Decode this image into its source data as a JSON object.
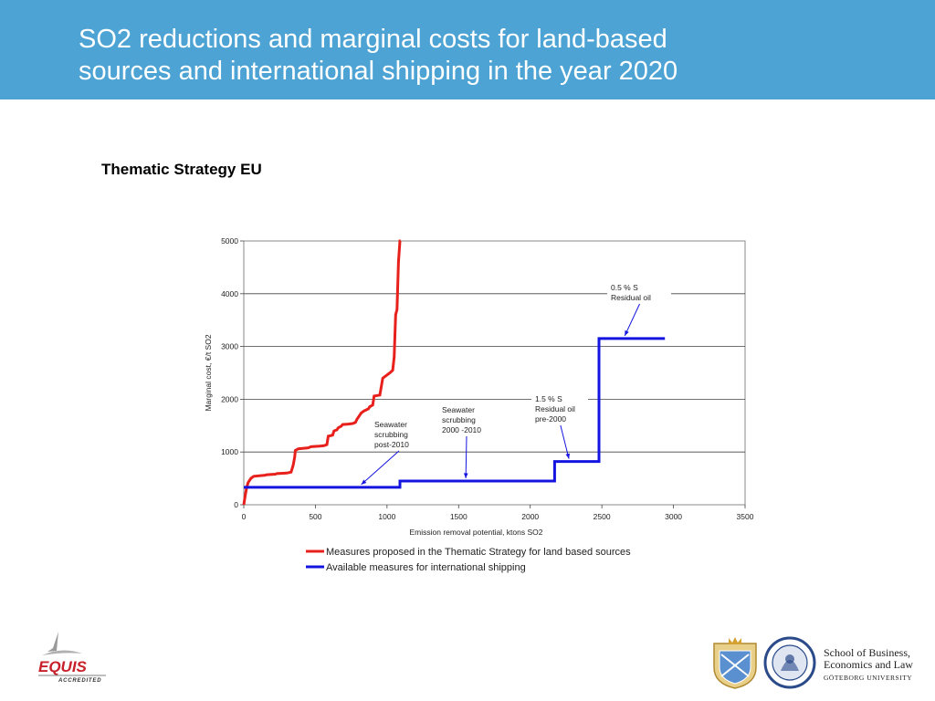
{
  "header": {
    "title_line1": "SO2 reductions and marginal costs for land-based",
    "title_line2": "sources and international shipping in the year 2020",
    "band_color": "#4ca3d4"
  },
  "subtitle": "Thematic Strategy EU",
  "chart_data": {
    "type": "line",
    "xlabel": "Emission removal potential, ktons SO2",
    "ylabel": "Marginal cost, €/t SO2",
    "xlim": [
      0,
      3500
    ],
    "ylim": [
      0,
      5000
    ],
    "xticks": [
      0,
      500,
      1000,
      1500,
      2000,
      2500,
      3000,
      3500
    ],
    "yticks": [
      0,
      1000,
      2000,
      3000,
      4000,
      5000
    ],
    "grid": "horizontal",
    "legend_position": "bottom",
    "series": [
      {
        "name": "Measures proposed in the Thematic Strategy for land based sources",
        "color": "#e8201c",
        "x": [
          0,
          10,
          20,
          30,
          50,
          60,
          70,
          150,
          160,
          220,
          230,
          300,
          330,
          345,
          355,
          360,
          380,
          450,
          470,
          530,
          560,
          580,
          590,
          620,
          630,
          650,
          660,
          680,
          690,
          730,
          760,
          780,
          790,
          810,
          820,
          840,
          850,
          870,
          880,
          900,
          910,
          950,
          970,
          1020,
          1040,
          1050,
          1060,
          1070,
          1080,
          1090,
          1095
        ],
        "y": [
          0,
          180,
          320,
          420,
          500,
          520,
          540,
          560,
          570,
          580,
          590,
          600,
          620,
          750,
          900,
          1030,
          1060,
          1080,
          1100,
          1110,
          1120,
          1140,
          1300,
          1320,
          1400,
          1420,
          1460,
          1490,
          1520,
          1530,
          1540,
          1560,
          1620,
          1700,
          1740,
          1780,
          1790,
          1820,
          1860,
          1890,
          2060,
          2080,
          2400,
          2500,
          2550,
          2800,
          3600,
          3700,
          4600,
          5000,
          5000
        ]
      },
      {
        "name": "Available measures for international shipping",
        "color": "#1414e0",
        "x": [
          0,
          1090,
          1090,
          2170,
          2170,
          2480,
          2480,
          2940
        ],
        "y": [
          330,
          330,
          450,
          450,
          820,
          820,
          3150,
          3150
        ]
      }
    ],
    "annotations": [
      {
        "lines": [
          "Seawater",
          "scrubbing",
          "post-2010"
        ],
        "arrow_to": [
          820,
          330
        ]
      },
      {
        "lines": [
          "Seawater",
          "scrubbing",
          "2000 -2010"
        ],
        "arrow_to": [
          1550,
          450
        ]
      },
      {
        "lines": [
          "1.5 % S",
          "Residual oil",
          "pre-2000"
        ],
        "arrow_to": [
          2270,
          820
        ]
      },
      {
        "lines": [
          "0.5 % S",
          "Residual oil"
        ],
        "arrow_to": [
          2660,
          3150
        ]
      }
    ]
  },
  "footer": {
    "equis_label": "EQUIS",
    "equis_sub": "ACCREDITED",
    "school_line1": "School of Business,",
    "school_line2": "Economics and Law",
    "school_line3": "GÖTEBORG UNIVERSITY"
  }
}
